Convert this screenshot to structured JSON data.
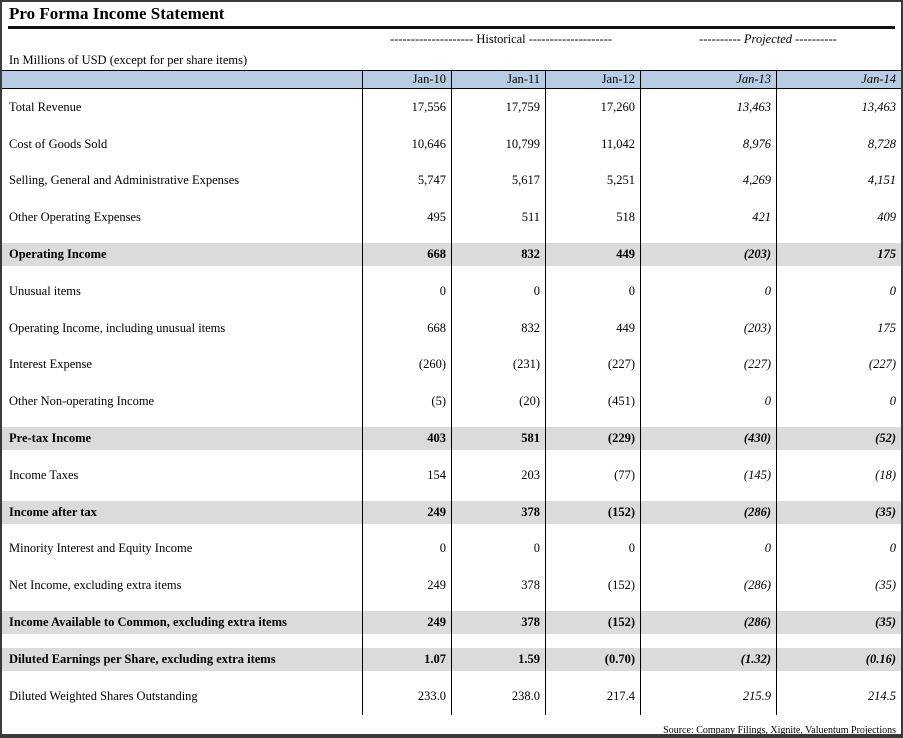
{
  "page": {
    "title": "Pro Forma Income Statement",
    "units_note": "In Millions of USD (except for per share items)",
    "source_note": "Source: Company Filings, Xignite, Valuentum Projections"
  },
  "colors": {
    "header_bg": "#B8CCE4",
    "band_bg": "#DBDBDB",
    "border": "#000000"
  },
  "table": {
    "group_headers": {
      "historical": "-------------------- Historical --------------------",
      "projected": "---------- Projected ----------"
    },
    "columns": [
      {
        "label": "Jan-10",
        "projected": false
      },
      {
        "label": "Jan-11",
        "projected": false
      },
      {
        "label": "Jan-12",
        "projected": false
      },
      {
        "label": "Jan-13",
        "projected": true
      },
      {
        "label": "Jan-14",
        "projected": true
      }
    ],
    "rows": [
      {
        "label": "Total Revenue",
        "emphasis": false,
        "values": [
          "17,556",
          "17,759",
          "17,260",
          "13,463",
          "13,463"
        ]
      },
      {
        "label": "Cost of Goods Sold",
        "emphasis": false,
        "values": [
          "10,646",
          "10,799",
          "11,042",
          "8,976",
          "8,728"
        ]
      },
      {
        "label": "Selling, General and Administrative Expenses",
        "emphasis": false,
        "values": [
          "5,747",
          "5,617",
          "5,251",
          "4,269",
          "4,151"
        ]
      },
      {
        "label": "Other Operating Expenses",
        "emphasis": false,
        "values": [
          "495",
          "511",
          "518",
          "421",
          "409"
        ]
      },
      {
        "label": "Operating Income",
        "emphasis": true,
        "values": [
          "668",
          "832",
          "449",
          "(203)",
          "175"
        ]
      },
      {
        "label": "Unusual items",
        "emphasis": false,
        "values": [
          "0",
          "0",
          "0",
          "0",
          "0"
        ]
      },
      {
        "label": "Operating Income, including unusual items",
        "emphasis": false,
        "values": [
          "668",
          "832",
          "449",
          "(203)",
          "175"
        ]
      },
      {
        "label": "Interest Expense",
        "emphasis": false,
        "values": [
          "(260)",
          "(231)",
          "(227)",
          "(227)",
          "(227)"
        ]
      },
      {
        "label": "Other Non-operating Income",
        "emphasis": false,
        "values": [
          "(5)",
          "(20)",
          "(451)",
          "0",
          "0"
        ]
      },
      {
        "label": "Pre-tax Income",
        "emphasis": true,
        "values": [
          "403",
          "581",
          "(229)",
          "(430)",
          "(52)"
        ]
      },
      {
        "label": "Income Taxes",
        "emphasis": false,
        "values": [
          "154",
          "203",
          "(77)",
          "(145)",
          "(18)"
        ]
      },
      {
        "label": "Income after tax",
        "emphasis": true,
        "values": [
          "249",
          "378",
          "(152)",
          "(286)",
          "(35)"
        ]
      },
      {
        "label": "Minority Interest and Equity Income",
        "emphasis": false,
        "values": [
          "0",
          "0",
          "0",
          "0",
          "0"
        ]
      },
      {
        "label": "Net Income, excluding extra items",
        "emphasis": false,
        "values": [
          "249",
          "378",
          "(152)",
          "(286)",
          "(35)"
        ]
      },
      {
        "label": "Income Available to Common, excluding extra items",
        "emphasis": true,
        "values": [
          "249",
          "378",
          "(152)",
          "(286)",
          "(35)"
        ]
      },
      {
        "label": "Diluted Earnings per Share, excluding extra items",
        "emphasis": true,
        "values": [
          "1.07",
          "1.59",
          "(0.70)",
          "(1.32)",
          "(0.16)"
        ]
      },
      {
        "label": "Diluted Weighted Shares Outstanding",
        "emphasis": false,
        "values": [
          "233.0",
          "238.0",
          "217.4",
          "215.9",
          "214.5"
        ]
      }
    ]
  }
}
